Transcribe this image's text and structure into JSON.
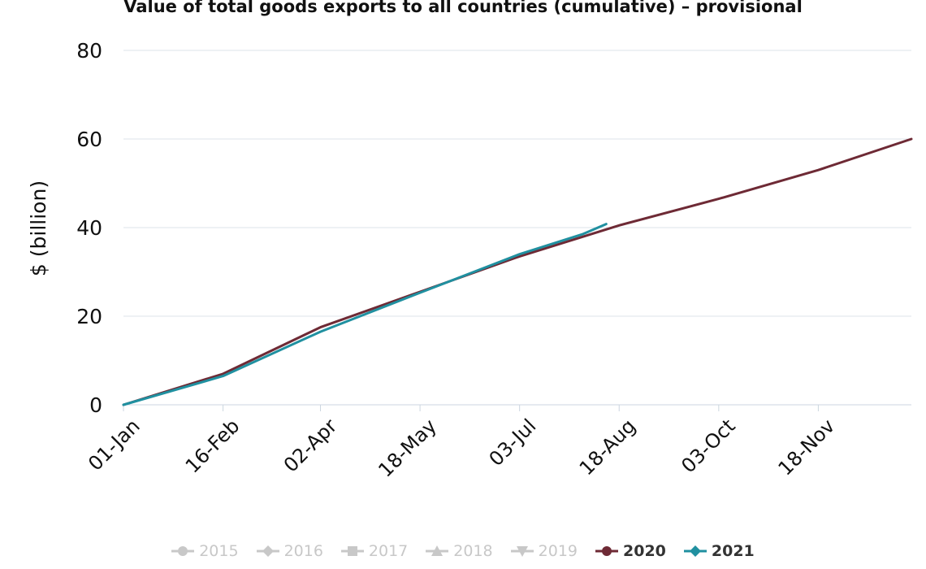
{
  "chart_data": {
    "type": "line",
    "title": "Value of total goods exports to all countries (cumulative) – provisional",
    "xlabel": "",
    "ylabel": "$ (billion)",
    "ylim": [
      0,
      80
    ],
    "yticks": [
      "0",
      "20",
      "40",
      "60",
      "80"
    ],
    "xticks": [
      "01-Jan",
      "16-Feb",
      "02-Apr",
      "18-May",
      "03-Jul",
      "18-Aug",
      "03-Oct",
      "18-Nov"
    ],
    "grid": "horizontal",
    "legend_position": "bottom",
    "colors": {
      "2020": "#6e2a35",
      "2021": "#2090a0",
      "inactive": "#c8c8c8",
      "grid": "#dde3ea",
      "axis": "#ccd6e0"
    },
    "series": [
      {
        "name": "2020",
        "active": true,
        "marker": "circle",
        "x": [
          "01-Jan",
          "16-Feb",
          "02-Apr",
          "18-May",
          "03-Jul",
          "18-Aug",
          "03-Oct",
          "18-Nov",
          "31-Dec"
        ],
        "y": [
          0,
          7,
          17.5,
          25.5,
          33.5,
          40.5,
          46.5,
          53,
          60
        ]
      },
      {
        "name": "2021",
        "active": true,
        "marker": "diamond",
        "x": [
          "01-Jan",
          "16-Feb",
          "02-Apr",
          "18-May",
          "03-Jul",
          "01-Aug",
          "12-Aug"
        ],
        "y": [
          0,
          6.5,
          16.5,
          25.3,
          34,
          38.5,
          40.8
        ]
      },
      {
        "name": "2015",
        "active": false,
        "marker": "circle"
      },
      {
        "name": "2016",
        "active": false,
        "marker": "diamond"
      },
      {
        "name": "2017",
        "active": false,
        "marker": "square"
      },
      {
        "name": "2018",
        "active": false,
        "marker": "triangle"
      },
      {
        "name": "2019",
        "active": false,
        "marker": "triangle-down"
      }
    ],
    "legend_order": [
      "2015",
      "2016",
      "2017",
      "2018",
      "2019",
      "2020",
      "2021"
    ]
  }
}
